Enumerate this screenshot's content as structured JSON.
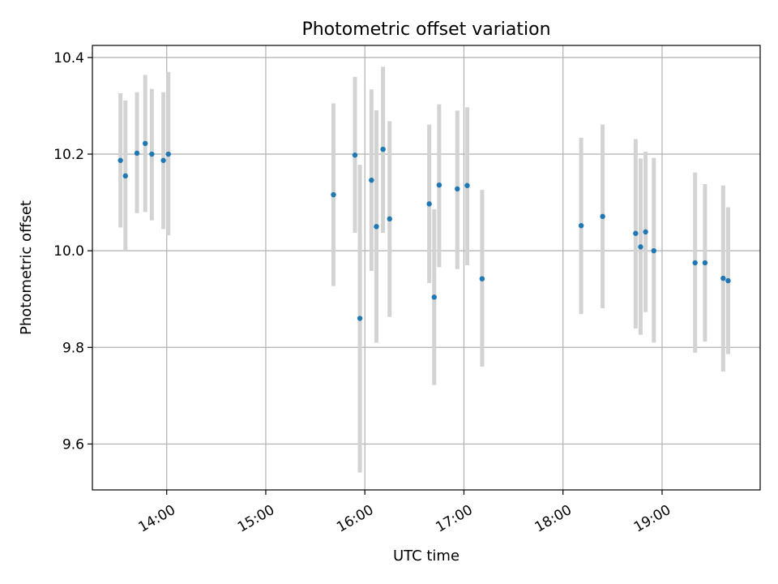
{
  "chart_data": {
    "type": "scatter",
    "title": "Photometric offset variation",
    "xlabel": "UTC time",
    "ylabel": "Photometric offset",
    "x_tick_labels": [
      "14:00",
      "15:00",
      "16:00",
      "17:00",
      "18:00",
      "19:00"
    ],
    "x_ticks_hours": [
      14,
      15,
      16,
      17,
      18,
      19
    ],
    "xlim_hours": [
      13.25,
      19.99
    ],
    "ylim": [
      9.505,
      10.425
    ],
    "y_ticks": [
      9.6,
      9.8,
      10.0,
      10.2,
      10.4
    ],
    "y_tick_labels": [
      "9.6",
      "9.8",
      "10.0",
      "10.2",
      "10.4"
    ],
    "grid": true,
    "colors": {
      "point": "#1f77b4",
      "errorbar": "#d3d3d3",
      "grid": "#b0b0b0"
    },
    "points": [
      {
        "t": "13:32",
        "y": 10.187,
        "lo": 10.048,
        "hi": 10.326
      },
      {
        "t": "13:35",
        "y": 10.155,
        "lo": 10.0,
        "hi": 10.311
      },
      {
        "t": "13:42",
        "y": 10.202,
        "lo": 10.078,
        "hi": 10.328
      },
      {
        "t": "13:47",
        "y": 10.222,
        "lo": 10.08,
        "hi": 10.364
      },
      {
        "t": "13:51",
        "y": 10.2,
        "lo": 10.063,
        "hi": 10.335
      },
      {
        "t": "13:58",
        "y": 10.187,
        "lo": 10.045,
        "hi": 10.328
      },
      {
        "t": "14:01",
        "y": 10.2,
        "lo": 10.032,
        "hi": 10.37
      },
      {
        "t": "15:41",
        "y": 10.116,
        "lo": 9.927,
        "hi": 10.305
      },
      {
        "t": "15:54",
        "y": 10.198,
        "lo": 10.037,
        "hi": 10.36
      },
      {
        "t": "15:57",
        "y": 9.86,
        "lo": 9.541,
        "hi": 10.178
      },
      {
        "t": "16:04",
        "y": 10.146,
        "lo": 9.958,
        "hi": 10.334
      },
      {
        "t": "16:07",
        "y": 10.05,
        "lo": 9.81,
        "hi": 10.291
      },
      {
        "t": "16:11",
        "y": 10.21,
        "lo": 10.037,
        "hi": 10.381
      },
      {
        "t": "16:15",
        "y": 10.066,
        "lo": 9.863,
        "hi": 10.268
      },
      {
        "t": "16:39",
        "y": 10.097,
        "lo": 9.933,
        "hi": 10.261
      },
      {
        "t": "16:42",
        "y": 9.904,
        "lo": 9.722,
        "hi": 10.086
      },
      {
        "t": "16:45",
        "y": 10.136,
        "lo": 9.966,
        "hi": 10.303
      },
      {
        "t": "16:56",
        "y": 10.128,
        "lo": 9.962,
        "hi": 10.29
      },
      {
        "t": "17:02",
        "y": 10.135,
        "lo": 9.97,
        "hi": 10.297
      },
      {
        "t": "17:11",
        "y": 9.942,
        "lo": 9.76,
        "hi": 10.126
      },
      {
        "t": "18:11",
        "y": 10.052,
        "lo": 9.869,
        "hi": 10.234
      },
      {
        "t": "18:24",
        "y": 10.071,
        "lo": 9.881,
        "hi": 10.261
      },
      {
        "t": "18:44",
        "y": 10.036,
        "lo": 9.839,
        "hi": 10.231
      },
      {
        "t": "18:47",
        "y": 10.008,
        "lo": 9.826,
        "hi": 10.191
      },
      {
        "t": "18:50",
        "y": 10.039,
        "lo": 9.873,
        "hi": 10.205
      },
      {
        "t": "18:55",
        "y": 10.0,
        "lo": 9.81,
        "hi": 10.192
      },
      {
        "t": "19:20",
        "y": 9.975,
        "lo": 9.789,
        "hi": 10.162
      },
      {
        "t": "19:26",
        "y": 9.975,
        "lo": 9.812,
        "hi": 10.138
      },
      {
        "t": "19:37",
        "y": 9.943,
        "lo": 9.75,
        "hi": 10.135
      },
      {
        "t": "19:40",
        "y": 9.938,
        "lo": 9.786,
        "hi": 10.09
      }
    ]
  }
}
